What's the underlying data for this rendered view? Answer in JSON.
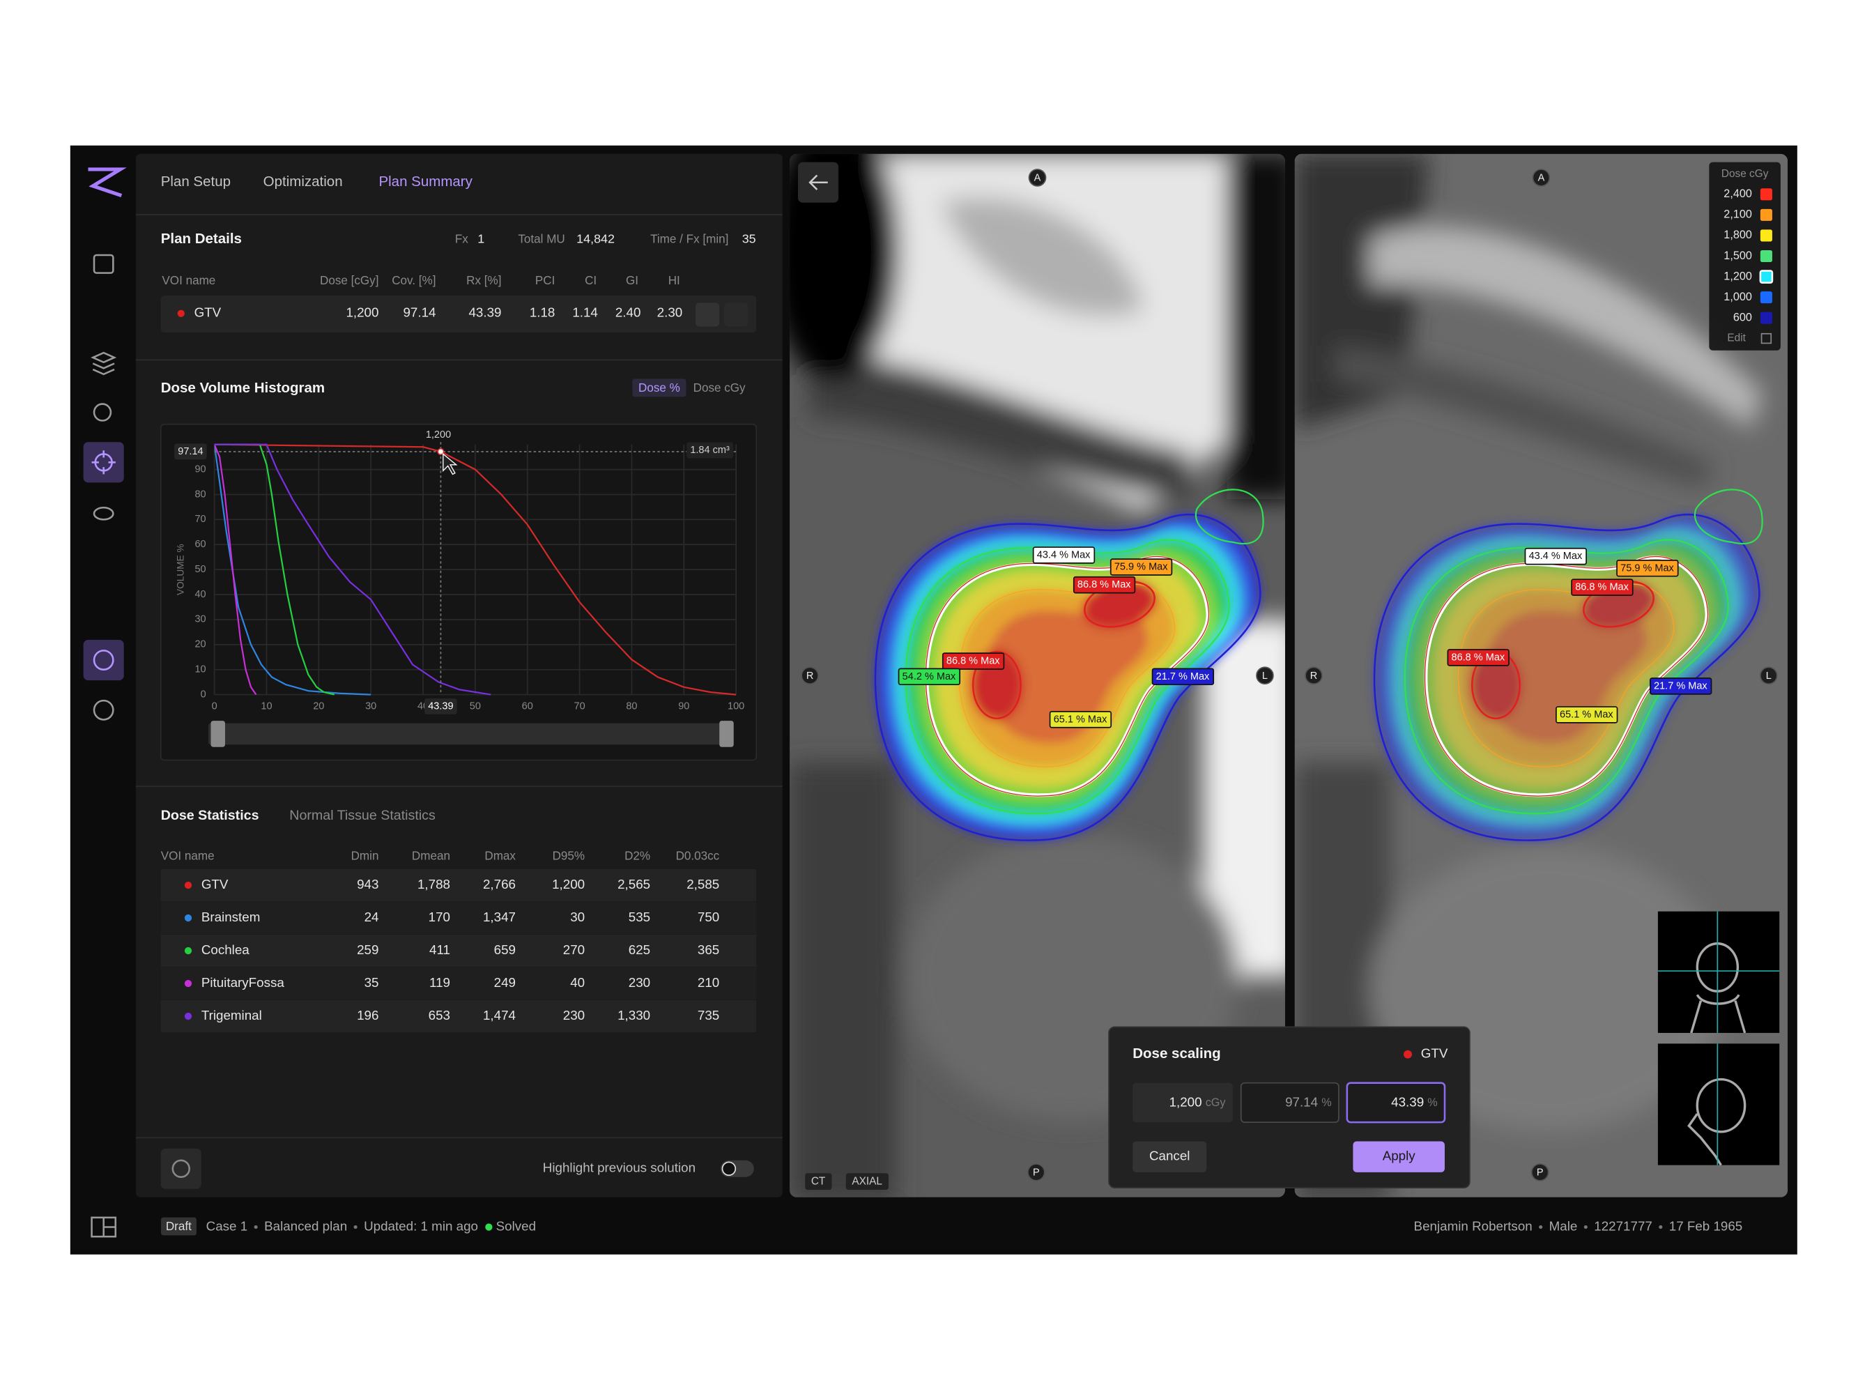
{
  "nav": {
    "tabs": [
      "Plan Setup",
      "Optimization",
      "Plan Summary"
    ],
    "active": 2
  },
  "plan_details": {
    "title": "Plan Details",
    "summary": [
      {
        "label": "Fx",
        "value": "1"
      },
      {
        "label": "Total MU",
        "value": "14,842"
      },
      {
        "label": "Time / Fx [min]",
        "value": "35"
      }
    ],
    "columns": [
      "VOI name",
      "Dose [cGy]",
      "Cov. [%]",
      "Rx [%]",
      "PCI",
      "CI",
      "GI",
      "HI"
    ],
    "rows": [
      {
        "color": "#e02020",
        "cells": [
          "GTV",
          "1,200",
          "97.14",
          "43.39",
          "1.18",
          "1.14",
          "2.40",
          "2.30"
        ]
      }
    ]
  },
  "dvh": {
    "type": "line",
    "title": "Dose Volume Histogram",
    "toggle": [
      "Dose %",
      "Dose cGy"
    ],
    "toggle_active": 0,
    "y_label": "VOLUME %",
    "xlim": [
      0,
      100
    ],
    "ylim": [
      0,
      100
    ],
    "xticks": [
      0,
      10,
      20,
      30,
      40,
      50,
      60,
      70,
      80,
      90,
      100
    ],
    "yticks": [
      0,
      10,
      20,
      30,
      40,
      50,
      60,
      70,
      80,
      90
    ],
    "grid": true,
    "cursor": {
      "x": 43.39,
      "y": 97.14,
      "dose_label": "1,200",
      "volume_label": "1.84 cm³"
    },
    "series": [
      {
        "color": "#d42a2a",
        "x": [
          0,
          40,
          43.39,
          50,
          55,
          60,
          65,
          70,
          75,
          80,
          85,
          90,
          95,
          100
        ],
        "values": [
          100,
          99,
          97.14,
          90,
          80,
          68,
          52,
          37,
          25,
          14,
          7,
          3,
          1,
          0
        ]
      },
      {
        "color": "#2f86e0",
        "x": [
          0,
          1,
          2.3,
          4.6,
          7,
          9,
          11,
          13.7,
          18,
          24,
          30
        ],
        "values": [
          100,
          85,
          65,
          35,
          20,
          12,
          7,
          4,
          1.5,
          0.5,
          0
        ]
      },
      {
        "color": "#25d040",
        "x": [
          0,
          8.7,
          10,
          11,
          12.3,
          14,
          16,
          18,
          19.6,
          21,
          23
        ],
        "values": [
          100,
          100,
          92,
          80,
          61,
          40,
          20,
          8,
          3,
          1,
          0
        ]
      },
      {
        "color": "#c82fd8",
        "x": [
          0,
          1,
          2,
          3,
          4,
          5,
          6,
          7,
          8
        ],
        "values": [
          100,
          95,
          80,
          60,
          40,
          22,
          10,
          3,
          0
        ]
      },
      {
        "color": "#7a2fe0",
        "x": [
          0,
          10,
          12,
          15,
          18,
          22,
          26,
          30,
          34,
          38,
          43,
          47,
          53
        ],
        "values": [
          100,
          100,
          90,
          78,
          68,
          55,
          45,
          38,
          25,
          12,
          5,
          2,
          0
        ]
      }
    ]
  },
  "dose_statistics": {
    "tabs": [
      "Dose Statistics",
      "Normal Tissue Statistics"
    ],
    "active": 0,
    "columns": [
      "VOI name",
      "Dmin",
      "Dmean",
      "Dmax",
      "D95%",
      "D2%",
      "D0.03cc"
    ],
    "rows": [
      {
        "color": "#e02020",
        "cells": [
          "GTV",
          "943",
          "1,788",
          "2,766",
          "1,200",
          "2,565",
          "2,585"
        ]
      },
      {
        "color": "#2f86e0",
        "cells": [
          "Brainstem",
          "24",
          "170",
          "1,347",
          "30",
          "535",
          "750"
        ]
      },
      {
        "color": "#25d040",
        "cells": [
          "Cochlea",
          "259",
          "411",
          "659",
          "270",
          "625",
          "365"
        ]
      },
      {
        "color": "#c82fd8",
        "cells": [
          "PituitaryFossa",
          "35",
          "119",
          "249",
          "40",
          "230",
          "210"
        ]
      },
      {
        "color": "#7a2fe0",
        "cells": [
          "Trigeminal",
          "196",
          "653",
          "1,474",
          "230",
          "1,330",
          "735"
        ]
      }
    ]
  },
  "highlight_previous": {
    "label": "Highlight previous solution",
    "on": false
  },
  "viewers": [
    {
      "orientation": [
        "A",
        "R",
        "L",
        "P"
      ],
      "tags": [
        "CT",
        "AXIAL"
      ],
      "isodose_labels": [
        {
          "text": "43.4 % Max",
          "color": "#ffffff"
        },
        {
          "text": "75.9 % Max",
          "color": "#ffa020"
        },
        {
          "text": "86.8 % Max",
          "color": "#e02020"
        },
        {
          "text": "86.8 % Max",
          "color": "#e02020"
        },
        {
          "text": "54.2 % Max",
          "color": "#30e050"
        },
        {
          "text": "21.7 % Max",
          "color": "#2020d0"
        },
        {
          "text": "65.1 % Max",
          "color": "#e8e830"
        }
      ]
    },
    {
      "orientation": [
        "A",
        "R",
        "L",
        "P"
      ],
      "isodose_labels": [
        {
          "text": "43.4 % Max",
          "color": "#ffffff"
        },
        {
          "text": "75.9 % Max",
          "color": "#ffa020"
        },
        {
          "text": "86.8 % Max",
          "color": "#e02020"
        },
        {
          "text": "86.8 % Max",
          "color": "#e02020"
        },
        {
          "text": "21.7 % Max",
          "color": "#2020d0"
        },
        {
          "text": "65.1 % Max",
          "color": "#e8e830"
        }
      ]
    }
  ],
  "dose_legend": {
    "title": "Dose cGy",
    "items": [
      {
        "label": "2,400",
        "color": "#ff2b1c"
      },
      {
        "label": "2,100",
        "color": "#ff9a1a"
      },
      {
        "label": "1,800",
        "color": "#ffe81a"
      },
      {
        "label": "1,500",
        "color": "#4ce07a"
      },
      {
        "label": "1,200",
        "color": "#20e8ff"
      },
      {
        "label": "1,000",
        "color": "#1a6aff"
      },
      {
        "label": "600",
        "color": "#1a1ab0"
      }
    ],
    "selected": 4,
    "edit": "Edit"
  },
  "dose_scaling": {
    "title": "Dose scaling",
    "structure": "GTV",
    "structure_color": "#e02020",
    "fields": [
      {
        "value": "1,200",
        "unit": "cGy"
      },
      {
        "value": "97.14",
        "unit": "%"
      },
      {
        "value": "43.39",
        "unit": "%"
      }
    ],
    "focused": 2,
    "cancel": "Cancel",
    "apply": "Apply"
  },
  "status": {
    "tag": "Draft",
    "items": [
      "Case 1",
      "Balanced plan",
      "Updated: 1 min ago"
    ],
    "state": "Solved",
    "patient": [
      "Benjamin Robertson",
      "Male",
      "12271777",
      "17 Feb 1965"
    ]
  }
}
